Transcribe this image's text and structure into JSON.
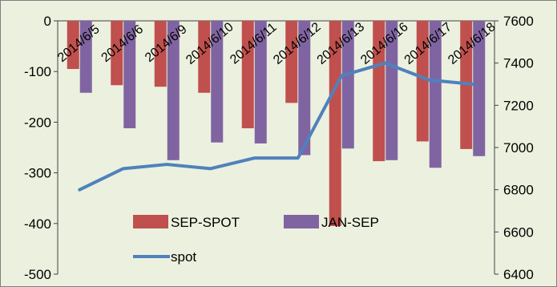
{
  "chart_data": {
    "type": "bar",
    "categories": [
      "2014/6/5",
      "2014/6/6",
      "2014/6/9",
      "2014/6/10",
      "2014/6/11",
      "2014/6/12",
      "2014/6/13",
      "2014/6/16",
      "2014/6/17",
      "2014/6/18"
    ],
    "series": [
      {
        "name": "SEP-SPOT",
        "type": "bar",
        "axis": "left",
        "color": "#c0504d",
        "values": [
          -95,
          -127,
          -130,
          -142,
          -212,
          -162,
          -405,
          -277,
          -238,
          -253
        ]
      },
      {
        "name": "JAN-SEP",
        "type": "bar",
        "axis": "left",
        "color": "#8064a2",
        "values": [
          -142,
          -212,
          -275,
          -240,
          -242,
          -265,
          -252,
          -275,
          -290,
          -267
        ]
      },
      {
        "name": "spot",
        "type": "line",
        "axis": "right",
        "color": "#4f81bd",
        "values": [
          6800,
          6900,
          6920,
          6900,
          6950,
          6950,
          7340,
          7400,
          7320,
          7300
        ]
      }
    ],
    "y_left": {
      "min": -500,
      "max": 0,
      "ticks": [
        0,
        -100,
        -200,
        -300,
        -400,
        -500
      ]
    },
    "y_right": {
      "min": 6400,
      "max": 7600,
      "ticks": [
        7600,
        7400,
        7200,
        7000,
        6800,
        6600,
        6400
      ]
    },
    "grid": false,
    "legend_position": "bottom-inside"
  }
}
